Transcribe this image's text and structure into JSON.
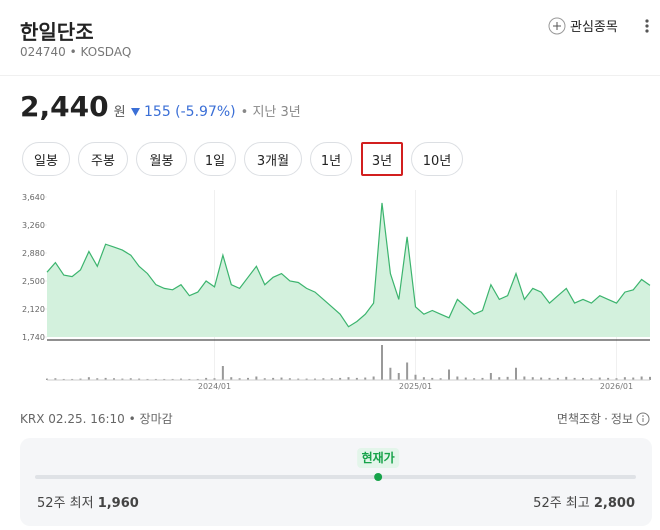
{
  "header": {
    "title": "한일단조",
    "code": "024740",
    "market": "KOSDAQ",
    "watch": "관심종목"
  },
  "quote": {
    "price": {
      "value": 2440,
      "label": "2,440"
    },
    "unit": "원",
    "change": "155 (-5.97%)",
    "period": "지난 3년"
  },
  "tabs": [
    "일봉",
    "주봉",
    "월봉",
    "1일",
    "3개월",
    "1년",
    "3년",
    "10년"
  ],
  "selected_tab": 6,
  "chart_data": {
    "type": "area",
    "color": "#3cb46e",
    "fill": "#d3f1dd",
    "categories": [
      null,
      null,
      null,
      null,
      null,
      null,
      null,
      null,
      null,
      null,
      null,
      null,
      null,
      null,
      null,
      null,
      null,
      null,
      null,
      null,
      "2024/01",
      null,
      null,
      null,
      null,
      null,
      null,
      null,
      null,
      null,
      null,
      null,
      null,
      null,
      null,
      null,
      null,
      null,
      null,
      null,
      null,
      null,
      null,
      null,
      "2025/01",
      null,
      null,
      null,
      null,
      null,
      null,
      null,
      null,
      null,
      null,
      null,
      null,
      null,
      null,
      null,
      null,
      null,
      null,
      null,
      null,
      null,
      null,
      null,
      "2026/01",
      null,
      null,
      null,
      null
    ],
    "values": [
      2620,
      2750,
      2580,
      2560,
      2650,
      2900,
      2700,
      3000,
      2960,
      2920,
      2850,
      2700,
      2600,
      2450,
      2400,
      2380,
      2450,
      2300,
      2350,
      2500,
      2420,
      2850,
      2450,
      2400,
      2550,
      2700,
      2450,
      2550,
      2600,
      2500,
      2480,
      2400,
      2350,
      2250,
      2150,
      2050,
      1880,
      1950,
      2050,
      2200,
      3560,
      2600,
      2250,
      3100,
      2150,
      2050,
      2100,
      2050,
      2000,
      2250,
      2150,
      2050,
      2100,
      2450,
      2250,
      2300,
      2600,
      2250,
      2400,
      2350,
      2200,
      2300,
      2400,
      2200,
      2250,
      2200,
      2300,
      2250,
      2200,
      2350,
      2380,
      2520,
      2440
    ],
    "volume": [
      4,
      5,
      3,
      3,
      4,
      8,
      5,
      6,
      5,
      4,
      5,
      4,
      3,
      3,
      3,
      3,
      4,
      3,
      3,
      6,
      5,
      40,
      8,
      5,
      6,
      10,
      5,
      6,
      7,
      5,
      4,
      4,
      4,
      5,
      5,
      6,
      8,
      6,
      7,
      10,
      100,
      35,
      20,
      50,
      15,
      8,
      6,
      5,
      30,
      10,
      7,
      5,
      6,
      20,
      8,
      9,
      35,
      10,
      8,
      7,
      6,
      6,
      9,
      6,
      6,
      5,
      7,
      6,
      5,
      8,
      7,
      10,
      9
    ],
    "vlim": [
      0,
      100
    ],
    "ylim": [
      1740,
      3640
    ],
    "yticks": [
      {
        "value": 1740,
        "label": "1,740"
      },
      {
        "value": 2120,
        "label": "2,120"
      },
      {
        "value": 2500,
        "label": "2,500"
      },
      {
        "value": 2880,
        "label": "2,880"
      },
      {
        "value": 3260,
        "label": "3,260"
      },
      {
        "value": 3640,
        "label": "3,640"
      }
    ]
  },
  "footer": {
    "time": "KRX 02.25. 16:10",
    "status": "장마감",
    "disclaimer": "면책조항",
    "info": "정보"
  },
  "range": {
    "current": "현재가",
    "low_label": "52주 최저",
    "low": {
      "value": 1960,
      "label": "1,960"
    },
    "high_label": "52주 최고",
    "high": {
      "value": 2800,
      "label": "2,800"
    }
  }
}
